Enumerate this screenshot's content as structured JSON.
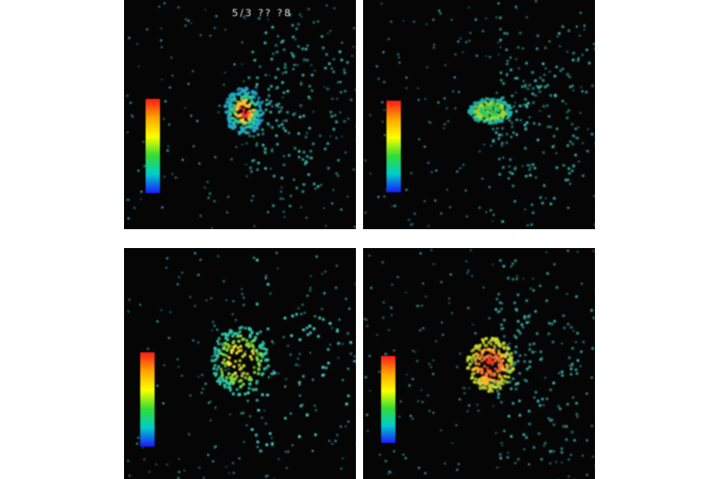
{
  "figure": {
    "panels": [
      {
        "id": "top-left",
        "label": "5/3 ?? ?8",
        "ticks": [
          "",
          "",
          "",
          ""
        ],
        "hotspot": {
          "color": "teal-green",
          "intensity": 0.55
        }
      },
      {
        "id": "top-right",
        "label": "",
        "ticks": [
          "",
          "",
          ""
        ],
        "hotspot": {
          "color": "green",
          "intensity": 0.5
        }
      },
      {
        "id": "bottom-left",
        "label": "",
        "ticks": [
          "",
          "",
          "",
          ""
        ],
        "hotspot": {
          "color": "yellow-green",
          "intensity": 0.75
        }
      },
      {
        "id": "bottom-right",
        "label": "",
        "ticks": [
          "",
          "",
          ""
        ],
        "hotspot": {
          "color": "red-orange",
          "intensity": 0.95
        }
      }
    ],
    "colorbar": {
      "colors": [
        "#ff1a1a",
        "#ffa500",
        "#ffff00",
        "#33dd33",
        "#00cccc",
        "#1a1aff"
      ]
    },
    "background_color": "#050505",
    "divider_color": "#ffffff"
  }
}
